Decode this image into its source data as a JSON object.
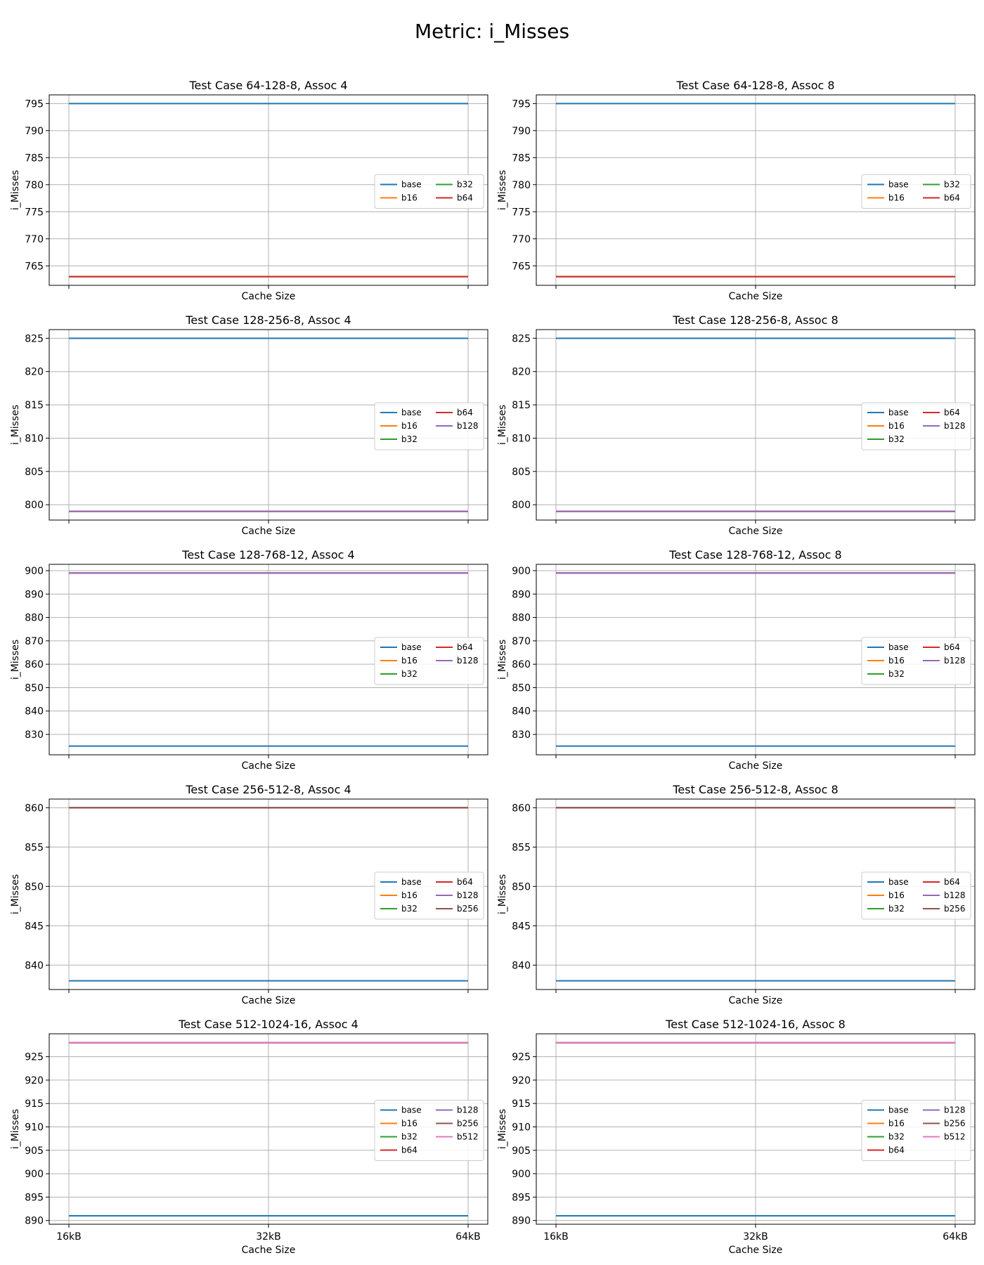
{
  "figure": {
    "title": "Metric: i_Misses"
  },
  "chart_data": [
    {
      "type": "line",
      "title": "Test Case 64-128-8, Assoc 4",
      "xlabel": "Cache Size",
      "ylabel": "i_Misses",
      "categories": [
        "16kB",
        "32kB",
        "64kB"
      ],
      "show_xticklabels": false,
      "yticks": [
        765,
        770,
        775,
        780,
        785,
        790,
        795
      ],
      "ylim": [
        761.4,
        796.6
      ],
      "grid": true,
      "legend": "center-right",
      "legend_columns": 2,
      "series": [
        {
          "name": "base",
          "color": "#1f77b4",
          "values": [
            795,
            795,
            795
          ]
        },
        {
          "name": "b16",
          "color": "#ff7f0e",
          "values": [
            763,
            763,
            763
          ]
        },
        {
          "name": "b32",
          "color": "#2ca02c",
          "values": [
            763,
            763,
            763
          ]
        },
        {
          "name": "b64",
          "color": "#d62728",
          "values": [
            763,
            763,
            763
          ]
        }
      ]
    },
    {
      "type": "line",
      "title": "Test Case 64-128-8, Assoc 8",
      "xlabel": "Cache Size",
      "ylabel": "i_Misses",
      "categories": [
        "16kB",
        "32kB",
        "64kB"
      ],
      "show_xticklabels": false,
      "yticks": [
        765,
        770,
        775,
        780,
        785,
        790,
        795
      ],
      "ylim": [
        761.4,
        796.6
      ],
      "grid": true,
      "legend": "center-right",
      "legend_columns": 2,
      "series": [
        {
          "name": "base",
          "color": "#1f77b4",
          "values": [
            795,
            795,
            795
          ]
        },
        {
          "name": "b16",
          "color": "#ff7f0e",
          "values": [
            763,
            763,
            763
          ]
        },
        {
          "name": "b32",
          "color": "#2ca02c",
          "values": [
            763,
            763,
            763
          ]
        },
        {
          "name": "b64",
          "color": "#d62728",
          "values": [
            763,
            763,
            763
          ]
        }
      ]
    },
    {
      "type": "line",
      "title": "Test Case 128-256-8, Assoc 4",
      "xlabel": "Cache Size",
      "ylabel": "i_Misses",
      "categories": [
        "16kB",
        "32kB",
        "64kB"
      ],
      "show_xticklabels": false,
      "yticks": [
        800,
        805,
        810,
        815,
        820,
        825
      ],
      "ylim": [
        797.7,
        826.3
      ],
      "grid": true,
      "legend": "center-right",
      "legend_columns": 2,
      "series": [
        {
          "name": "base",
          "color": "#1f77b4",
          "values": [
            825,
            825,
            825
          ]
        },
        {
          "name": "b16",
          "color": "#ff7f0e",
          "values": [
            799,
            799,
            799
          ]
        },
        {
          "name": "b32",
          "color": "#2ca02c",
          "values": [
            799,
            799,
            799
          ]
        },
        {
          "name": "b64",
          "color": "#d62728",
          "values": [
            799,
            799,
            799
          ]
        },
        {
          "name": "b128",
          "color": "#9467bd",
          "values": [
            799,
            799,
            799
          ]
        }
      ]
    },
    {
      "type": "line",
      "title": "Test Case 128-256-8, Assoc 8",
      "xlabel": "Cache Size",
      "ylabel": "i_Misses",
      "categories": [
        "16kB",
        "32kB",
        "64kB"
      ],
      "show_xticklabels": false,
      "yticks": [
        800,
        805,
        810,
        815,
        820,
        825
      ],
      "ylim": [
        797.7,
        826.3
      ],
      "grid": true,
      "legend": "center-right",
      "legend_columns": 2,
      "series": [
        {
          "name": "base",
          "color": "#1f77b4",
          "values": [
            825,
            825,
            825
          ]
        },
        {
          "name": "b16",
          "color": "#ff7f0e",
          "values": [
            799,
            799,
            799
          ]
        },
        {
          "name": "b32",
          "color": "#2ca02c",
          "values": [
            799,
            799,
            799
          ]
        },
        {
          "name": "b64",
          "color": "#d62728",
          "values": [
            799,
            799,
            799
          ]
        },
        {
          "name": "b128",
          "color": "#9467bd",
          "values": [
            799,
            799,
            799
          ]
        }
      ]
    },
    {
      "type": "line",
      "title": "Test Case 128-768-12, Assoc 4",
      "xlabel": "Cache Size",
      "ylabel": "i_Misses",
      "categories": [
        "16kB",
        "32kB",
        "64kB"
      ],
      "show_xticklabels": false,
      "yticks": [
        830,
        840,
        850,
        860,
        870,
        880,
        890,
        900
      ],
      "ylim": [
        821.3,
        902.7
      ],
      "grid": true,
      "legend": "center-right",
      "legend_columns": 2,
      "series": [
        {
          "name": "base",
          "color": "#1f77b4",
          "values": [
            825,
            825,
            825
          ]
        },
        {
          "name": "b16",
          "color": "#ff7f0e",
          "values": [
            899,
            899,
            899
          ]
        },
        {
          "name": "b32",
          "color": "#2ca02c",
          "values": [
            899,
            899,
            899
          ]
        },
        {
          "name": "b64",
          "color": "#d62728",
          "values": [
            899,
            899,
            899
          ]
        },
        {
          "name": "b128",
          "color": "#9467bd",
          "values": [
            899,
            899,
            899
          ]
        }
      ]
    },
    {
      "type": "line",
      "title": "Test Case 128-768-12, Assoc 8",
      "xlabel": "Cache Size",
      "ylabel": "i_Misses",
      "categories": [
        "16kB",
        "32kB",
        "64kB"
      ],
      "show_xticklabels": false,
      "yticks": [
        830,
        840,
        850,
        860,
        870,
        880,
        890,
        900
      ],
      "ylim": [
        821.3,
        902.7
      ],
      "grid": true,
      "legend": "center-right",
      "legend_columns": 2,
      "series": [
        {
          "name": "base",
          "color": "#1f77b4",
          "values": [
            825,
            825,
            825
          ]
        },
        {
          "name": "b16",
          "color": "#ff7f0e",
          "values": [
            899,
            899,
            899
          ]
        },
        {
          "name": "b32",
          "color": "#2ca02c",
          "values": [
            899,
            899,
            899
          ]
        },
        {
          "name": "b64",
          "color": "#d62728",
          "values": [
            899,
            899,
            899
          ]
        },
        {
          "name": "b128",
          "color": "#9467bd",
          "values": [
            899,
            899,
            899
          ]
        }
      ]
    },
    {
      "type": "line",
      "title": "Test Case 256-512-8, Assoc 4",
      "xlabel": "Cache Size",
      "ylabel": "i_Misses",
      "categories": [
        "16kB",
        "32kB",
        "64kB"
      ],
      "show_xticklabels": false,
      "yticks": [
        840,
        845,
        850,
        855,
        860
      ],
      "ylim": [
        836.9,
        861.1
      ],
      "grid": true,
      "legend": "center-right",
      "legend_columns": 2,
      "series": [
        {
          "name": "base",
          "color": "#1f77b4",
          "values": [
            838,
            838,
            838
          ]
        },
        {
          "name": "b16",
          "color": "#ff7f0e",
          "values": [
            860,
            860,
            860
          ]
        },
        {
          "name": "b32",
          "color": "#2ca02c",
          "values": [
            860,
            860,
            860
          ]
        },
        {
          "name": "b64",
          "color": "#d62728",
          "values": [
            860,
            860,
            860
          ]
        },
        {
          "name": "b128",
          "color": "#9467bd",
          "values": [
            860,
            860,
            860
          ]
        },
        {
          "name": "b256",
          "color": "#8c564b",
          "values": [
            860,
            860,
            860
          ]
        }
      ]
    },
    {
      "type": "line",
      "title": "Test Case 256-512-8, Assoc 8",
      "xlabel": "Cache Size",
      "ylabel": "i_Misses",
      "categories": [
        "16kB",
        "32kB",
        "64kB"
      ],
      "show_xticklabels": false,
      "yticks": [
        840,
        845,
        850,
        855,
        860
      ],
      "ylim": [
        836.9,
        861.1
      ],
      "grid": true,
      "legend": "center-right",
      "legend_columns": 2,
      "series": [
        {
          "name": "base",
          "color": "#1f77b4",
          "values": [
            838,
            838,
            838
          ]
        },
        {
          "name": "b16",
          "color": "#ff7f0e",
          "values": [
            860,
            860,
            860
          ]
        },
        {
          "name": "b32",
          "color": "#2ca02c",
          "values": [
            860,
            860,
            860
          ]
        },
        {
          "name": "b64",
          "color": "#d62728",
          "values": [
            860,
            860,
            860
          ]
        },
        {
          "name": "b128",
          "color": "#9467bd",
          "values": [
            860,
            860,
            860
          ]
        },
        {
          "name": "b256",
          "color": "#8c564b",
          "values": [
            860,
            860,
            860
          ]
        }
      ]
    },
    {
      "type": "line",
      "title": "Test Case 512-1024-16, Assoc 4",
      "xlabel": "Cache Size",
      "ylabel": "i_Misses",
      "categories": [
        "16kB",
        "32kB",
        "64kB"
      ],
      "show_xticklabels": true,
      "yticks": [
        890,
        895,
        900,
        905,
        910,
        915,
        920,
        925
      ],
      "ylim": [
        889.2,
        929.9
      ],
      "grid": true,
      "legend": "center-right",
      "legend_columns": 2,
      "series": [
        {
          "name": "base",
          "color": "#1f77b4",
          "values": [
            891,
            891,
            891
          ]
        },
        {
          "name": "b16",
          "color": "#ff7f0e",
          "values": [
            928,
            928,
            928
          ]
        },
        {
          "name": "b32",
          "color": "#2ca02c",
          "values": [
            928,
            928,
            928
          ]
        },
        {
          "name": "b64",
          "color": "#d62728",
          "values": [
            928,
            928,
            928
          ]
        },
        {
          "name": "b128",
          "color": "#9467bd",
          "values": [
            928,
            928,
            928
          ]
        },
        {
          "name": "b256",
          "color": "#8c564b",
          "values": [
            928,
            928,
            928
          ]
        },
        {
          "name": "b512",
          "color": "#e377c2",
          "values": [
            928,
            928,
            928
          ]
        }
      ]
    },
    {
      "type": "line",
      "title": "Test Case 512-1024-16, Assoc 8",
      "xlabel": "Cache Size",
      "ylabel": "i_Misses",
      "categories": [
        "16kB",
        "32kB",
        "64kB"
      ],
      "show_xticklabels": true,
      "yticks": [
        890,
        895,
        900,
        905,
        910,
        915,
        920,
        925
      ],
      "ylim": [
        889.2,
        929.9
      ],
      "grid": true,
      "legend": "center-right",
      "legend_columns": 2,
      "series": [
        {
          "name": "base",
          "color": "#1f77b4",
          "values": [
            891,
            891,
            891
          ]
        },
        {
          "name": "b16",
          "color": "#ff7f0e",
          "values": [
            928,
            928,
            928
          ]
        },
        {
          "name": "b32",
          "color": "#2ca02c",
          "values": [
            928,
            928,
            928
          ]
        },
        {
          "name": "b64",
          "color": "#d62728",
          "values": [
            928,
            928,
            928
          ]
        },
        {
          "name": "b128",
          "color": "#9467bd",
          "values": [
            928,
            928,
            928
          ]
        },
        {
          "name": "b256",
          "color": "#8c564b",
          "values": [
            928,
            928,
            928
          ]
        },
        {
          "name": "b512",
          "color": "#e377c2",
          "values": [
            928,
            928,
            928
          ]
        }
      ]
    }
  ]
}
